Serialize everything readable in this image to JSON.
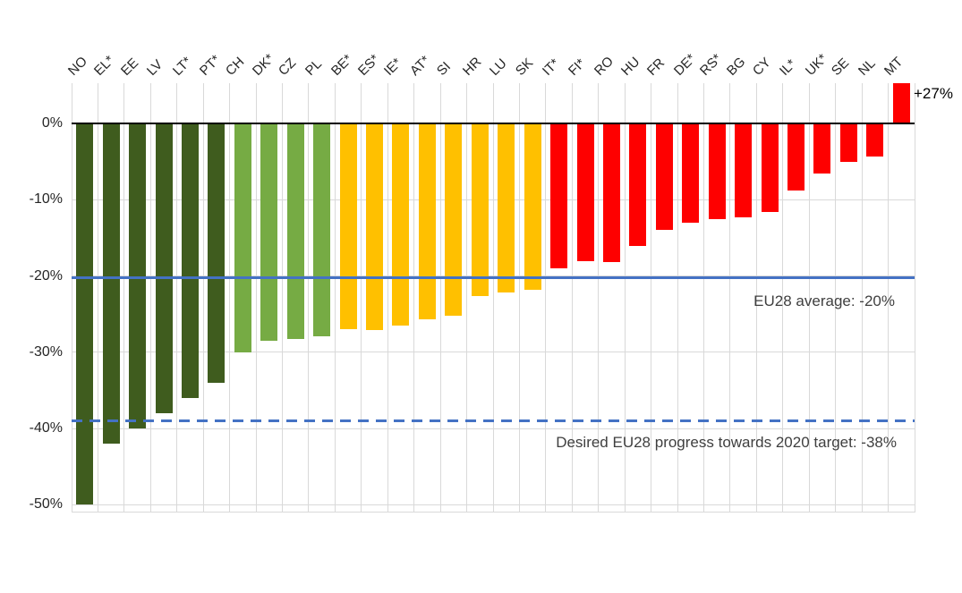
{
  "chart_data": {
    "type": "bar",
    "title": "",
    "xlabel": "",
    "ylabel": "",
    "categories": [
      "NO",
      "EL*",
      "EE",
      "LV",
      "LT*",
      "PT*",
      "CH",
      "DK*",
      "CZ",
      "PL",
      "BE*",
      "ES*",
      "IE*",
      "AT*",
      "SI",
      "HR",
      "LU",
      "SK",
      "IT*",
      "FI*",
      "RO",
      "HU",
      "FR",
      "DE*",
      "RS*",
      "BG",
      "CY",
      "IL*",
      "UK*",
      "SE",
      "NL",
      "MT"
    ],
    "values": [
      -50,
      -42,
      -40,
      -38,
      -36,
      -34,
      -30,
      -28.5,
      -28.3,
      -27.9,
      -27,
      -27.1,
      -26.5,
      -25.7,
      -25.2,
      -22.6,
      -22.2,
      -21.8,
      -19,
      -18.1,
      -18.2,
      -16,
      -13.9,
      -13,
      -12.5,
      -12.3,
      -11.6,
      -8.8,
      -6.5,
      -5,
      -4.3,
      27
    ],
    "bar_color_groups": [
      "dark-green",
      "dark-green",
      "dark-green",
      "dark-green",
      "dark-green",
      "dark-green",
      "light-green",
      "light-green",
      "light-green",
      "light-green",
      "gold",
      "gold",
      "gold",
      "gold",
      "gold",
      "gold",
      "gold",
      "gold",
      "red",
      "red",
      "red",
      "red",
      "red",
      "red",
      "red",
      "red",
      "red",
      "red",
      "red",
      "red",
      "red",
      "red"
    ],
    "colors": {
      "dark-green": "#3F5C1E",
      "light-green": "#76AB44",
      "gold": "#FFC000",
      "red": "#FE0000",
      "reference-blue": "#4472C4",
      "gridline": "#D9D9D9",
      "axis": "#000000"
    },
    "axis": {
      "tick_labels": [
        "0%",
        "-10%",
        "-20%",
        "-30%",
        "-40%",
        "-50%"
      ],
      "tick_values": [
        0,
        -10,
        -20,
        -30,
        -40,
        -50
      ],
      "ylim_top": 5.3,
      "ylim_bottom": -51,
      "grid": true
    },
    "clipped_bars": {
      "MT": {
        "true_value": 27,
        "clipped_at_plot_top": true
      }
    },
    "mt_value_label": "+27%",
    "reference_lines": [
      {
        "name": "eu28-average-line",
        "value": -20,
        "plotted_at": -20.2,
        "style": "solid",
        "label": "EU28 average: -20%"
      },
      {
        "name": "desired-target-line",
        "value": -38,
        "plotted_at": -39,
        "style": "dashed",
        "label": "Desired EU28 progress towards 2020 target: -38%"
      }
    ],
    "legend": "none"
  }
}
